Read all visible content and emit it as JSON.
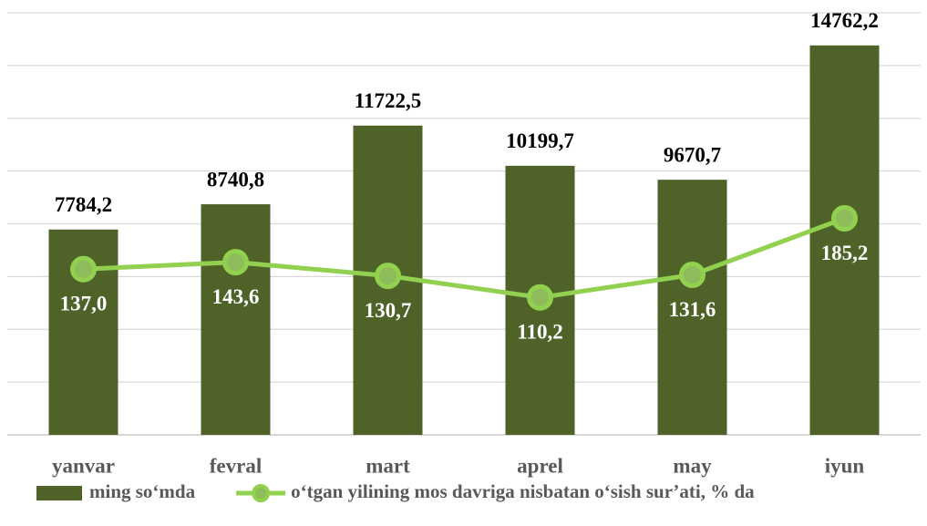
{
  "chart_data": {
    "type": "bar",
    "categories": [
      "yanvar",
      "fevral",
      "mart",
      "aprel",
      "may",
      "iyun"
    ],
    "series": [
      {
        "name": "ming so‘mda",
        "type": "bar",
        "color": "#4f6228",
        "values": [
          7784.2,
          8740.8,
          11722.5,
          10199.7,
          9670.7,
          14762.2
        ],
        "value_labels": [
          "7784,2",
          "8740,8",
          "11722,5",
          "10199,7",
          "9670,7",
          "14762,2"
        ]
      },
      {
        "name": "o‘tgan yilining mos davriga nisbatan o‘sish sur’ati, % da",
        "type": "line",
        "axis": "y2",
        "color": "#92d050",
        "values": [
          137.0,
          143.6,
          130.7,
          110.2,
          131.6,
          185.2
        ],
        "value_labels": [
          "137,0",
          "143,6",
          "130,7",
          "110,2",
          "131,6",
          "185,2"
        ]
      }
    ],
    "ylim": [
      0,
      16000
    ],
    "yticks": [
      0,
      2000,
      4000,
      6000,
      8000,
      10000,
      12000,
      14000,
      16000
    ],
    "y2lim": [
      -20,
      380
    ],
    "grid": true,
    "legend": "bottom"
  }
}
